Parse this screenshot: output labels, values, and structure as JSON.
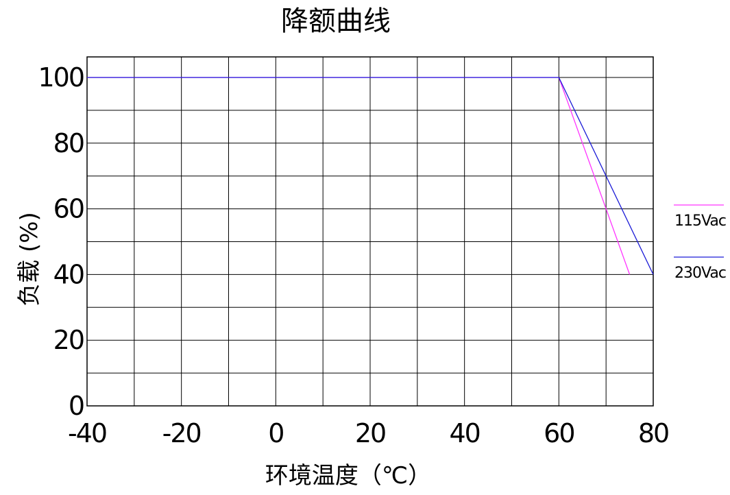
{
  "chart_data": {
    "type": "line",
    "title": "降额曲线",
    "xlabel": "环境温度（℃）",
    "ylabel": "负载 (%)",
    "xlim": [
      -40,
      80
    ],
    "ylim": [
      0,
      100
    ],
    "x_ticks": [
      "-40",
      "-20",
      "0",
      "20",
      "40",
      "60",
      "80"
    ],
    "y_ticks": [
      "0",
      "20",
      "40",
      "60",
      "80",
      "100"
    ],
    "grid": true,
    "legend_position": "right",
    "series": [
      {
        "name": "115Vac",
        "color": "#ff33ff",
        "x": [
          -40,
          60,
          75
        ],
        "y": [
          100,
          100,
          40
        ]
      },
      {
        "name": "230Vac",
        "color": "#1a1ad6",
        "x": [
          -40,
          60,
          80
        ],
        "y": [
          100,
          100,
          40
        ]
      }
    ]
  }
}
